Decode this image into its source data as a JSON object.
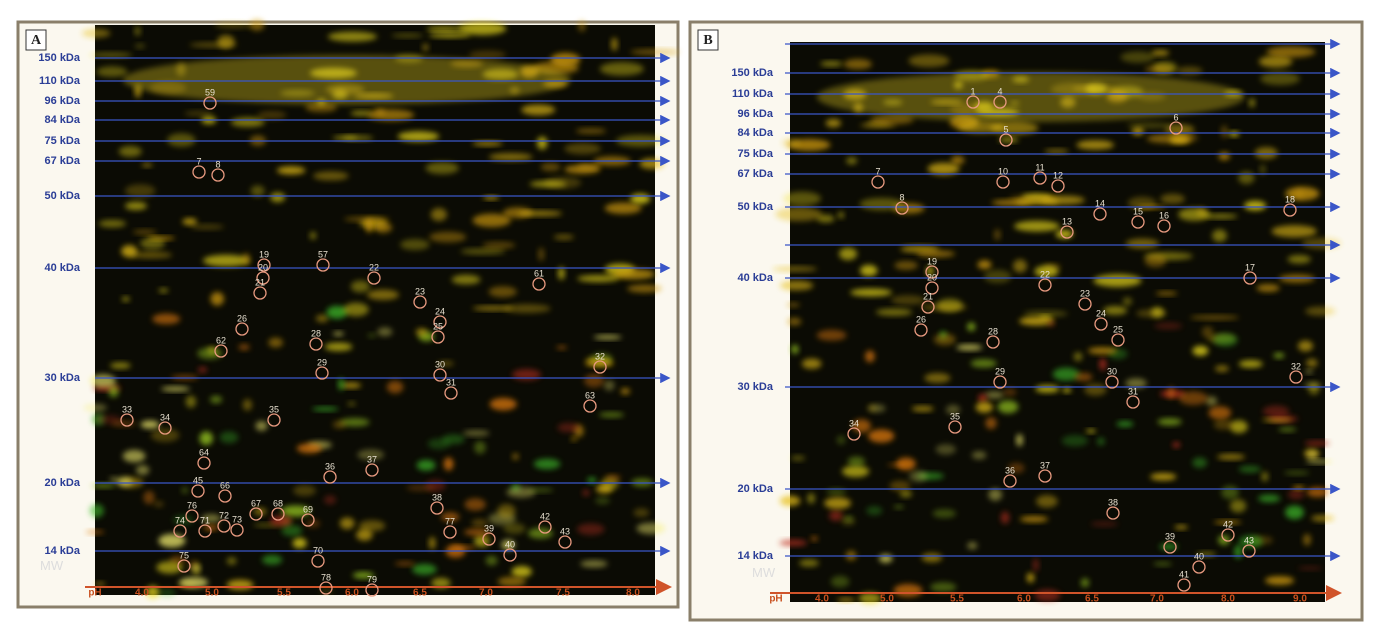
{
  "panels": [
    {
      "label": "A",
      "mw_unit_label": "MW",
      "mw_markers": [
        "150 kDa",
        "110 kDa",
        "96 kDa",
        "84 kDa",
        "75 kDa",
        "67 kDa",
        "50 kDa",
        "40 kDa",
        "30 kDa",
        "20 kDa",
        "14 kDa"
      ],
      "ph_labels": [
        "pH",
        "4.0",
        "5.0",
        "5.5",
        "6.0",
        "6.5",
        "7.0",
        "7.5",
        "8.0"
      ],
      "spots": [
        "59",
        "7",
        "8",
        "19",
        "20",
        "21",
        "22",
        "23",
        "24",
        "25",
        "26",
        "28",
        "29",
        "30",
        "31",
        "32",
        "33",
        "34",
        "35",
        "36",
        "37",
        "38",
        "39",
        "40",
        "42",
        "43",
        "45",
        "66",
        "67",
        "68",
        "69",
        "70",
        "71",
        "72",
        "73",
        "74",
        "75",
        "76",
        "77",
        "78",
        "79",
        "57",
        "61",
        "62",
        "63",
        "64"
      ]
    },
    {
      "label": "B",
      "mw_unit_label": "MW",
      "mw_markers": [
        "150 kDa",
        "110 kDa",
        "96 kDa",
        "84 kDa",
        "75 kDa",
        "67 kDa",
        "50 kDa",
        "40 kDa",
        "30 kDa",
        "20 kDa",
        "14 kDa"
      ],
      "ph_labels": [
        "pH",
        "4.0",
        "5.0",
        "5.5",
        "6.0",
        "6.5",
        "7.0",
        "8.0",
        "9.0"
      ],
      "spots": [
        "1",
        "4",
        "5",
        "6",
        "7",
        "8",
        "10",
        "11",
        "12",
        "13",
        "14",
        "15",
        "16",
        "17",
        "18",
        "19",
        "20",
        "21",
        "22",
        "23",
        "24",
        "25",
        "26",
        "28",
        "29",
        "30",
        "31",
        "32",
        "34",
        "35",
        "36",
        "37",
        "38",
        "39",
        "40",
        "41",
        "42",
        "43"
      ]
    }
  ]
}
